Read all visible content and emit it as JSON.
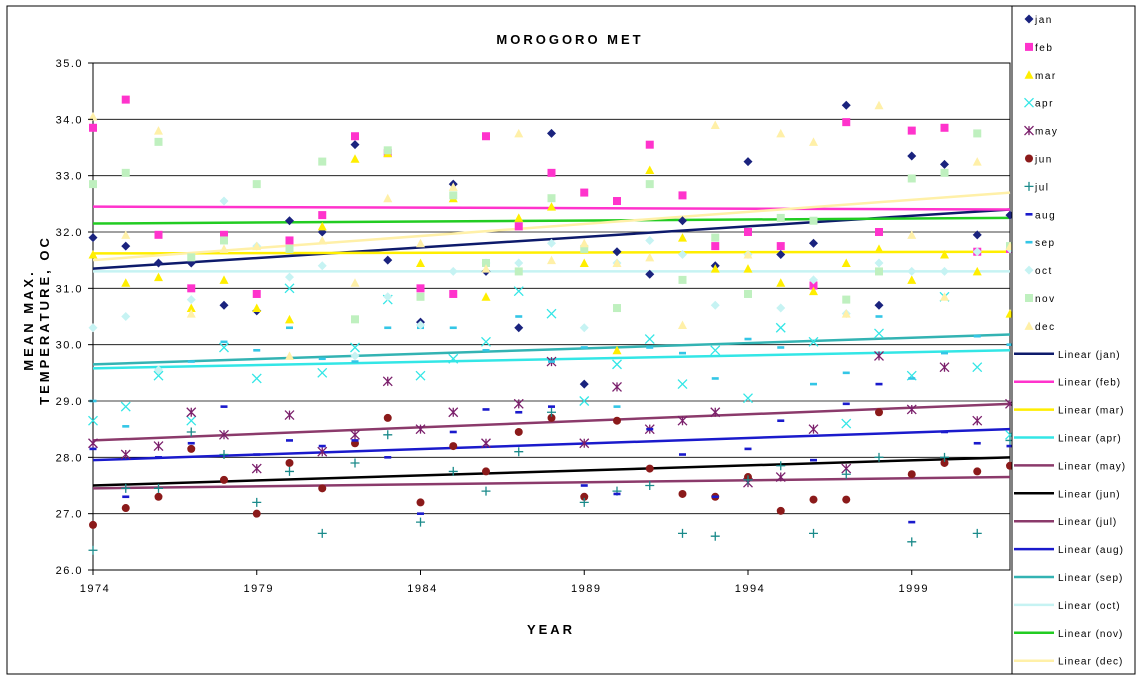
{
  "chart_data": {
    "type": "scatter",
    "title": "MOROGORO MET",
    "xlabel": "YEAR",
    "ylabel_line1": "MEAN MAX.",
    "ylabel_line2": "TEMPERATURE, OC",
    "xlim": [
      1974,
      2002
    ],
    "ylim": [
      26.0,
      35.0
    ],
    "x_ticks": [
      "1974",
      "1979",
      "1984",
      "1989",
      "1994",
      "1999"
    ],
    "y_ticks": [
      "26.0",
      "27.0",
      "28.0",
      "29.0",
      "30.0",
      "31.0",
      "32.0",
      "33.0",
      "34.0",
      "35.0"
    ],
    "grid": "horizontal",
    "legend_position": "right",
    "x": [
      1974,
      1975,
      1976,
      1977,
      1978,
      1979,
      1980,
      1981,
      1982,
      1983,
      1984,
      1985,
      1986,
      1987,
      1988,
      1989,
      1990,
      1991,
      1992,
      1993,
      1994,
      1995,
      1996,
      1997,
      1998,
      1999,
      2000,
      2001,
      2002
    ],
    "series": [
      {
        "name": "jan",
        "marker": "diamond",
        "color": "#1a237e",
        "values": [
          31.9,
          31.75,
          31.45,
          31.45,
          30.7,
          30.6,
          32.2,
          32.0,
          33.55,
          31.5,
          30.4,
          32.85,
          31.3,
          30.3,
          33.75,
          29.3,
          31.65,
          31.25,
          32.2,
          31.4,
          33.25,
          31.6,
          31.8,
          34.25,
          30.7,
          33.35,
          33.2,
          31.95,
          32.3
        ]
      },
      {
        "name": "feb",
        "marker": "square",
        "color": "#ff33cc",
        "values": [
          33.85,
          34.35,
          31.95,
          31.0,
          31.95,
          30.9,
          31.85,
          32.3,
          33.7,
          33.4,
          31.0,
          30.9,
          33.7,
          32.1,
          33.05,
          32.7,
          32.55,
          33.55,
          32.65,
          31.75,
          32.0,
          31.75,
          31.05,
          33.95,
          32.0,
          33.8,
          33.85,
          31.65,
          31.7
        ]
      },
      {
        "name": "mar",
        "marker": "triangle",
        "color": "#ffee00",
        "values": [
          31.6,
          31.1,
          31.2,
          30.65,
          31.15,
          30.65,
          30.45,
          32.1,
          33.3,
          33.4,
          31.45,
          32.6,
          30.85,
          32.25,
          32.45,
          31.45,
          29.9,
          33.1,
          31.9,
          31.35,
          31.35,
          31.1,
          30.95,
          31.45,
          31.7,
          31.15,
          31.6,
          31.3,
          30.55
        ]
      },
      {
        "name": "apr",
        "marker": "x",
        "color": "#33e6e6",
        "values": [
          28.65,
          28.9,
          29.45,
          28.65,
          29.95,
          29.4,
          31.0,
          29.5,
          29.95,
          30.8,
          29.45,
          29.75,
          30.05,
          30.95,
          30.55,
          29.0,
          29.65,
          30.1,
          29.3,
          29.9,
          29.05,
          30.3,
          30.05,
          28.6,
          30.2,
          29.45,
          30.85,
          29.6,
          28.4
        ]
      },
      {
        "name": "may",
        "marker": "star",
        "color": "#7b1f6b",
        "values": [
          28.25,
          28.05,
          28.2,
          28.8,
          28.4,
          27.8,
          28.75,
          28.1,
          28.4,
          29.35,
          28.5,
          28.8,
          28.25,
          28.95,
          29.7,
          28.25,
          29.25,
          28.5,
          28.65,
          28.8,
          27.55,
          27.65,
          28.5,
          27.8,
          29.8,
          28.85,
          29.6,
          28.65,
          28.95
        ]
      },
      {
        "name": "jun",
        "marker": "circle",
        "color": "#8b1a1a",
        "values": [
          26.8,
          27.1,
          27.3,
          28.15,
          27.6,
          27.0,
          27.9,
          27.45,
          28.25,
          28.7,
          27.2,
          28.2,
          27.75,
          28.45,
          28.7,
          27.3,
          28.65,
          27.8,
          27.35,
          27.3,
          27.65,
          27.05,
          27.25,
          27.25,
          28.8,
          27.7,
          27.9,
          27.75,
          27.85
        ]
      },
      {
        "name": "jul",
        "marker": "plus",
        "color": "#1a8a8a",
        "values": [
          26.35,
          27.45,
          27.45,
          28.45,
          28.05,
          27.2,
          27.75,
          26.65,
          27.9,
          28.4,
          26.85,
          27.75,
          27.4,
          28.1,
          28.8,
          27.2,
          27.4,
          27.5,
          26.65,
          26.6,
          27.6,
          27.85,
          26.65,
          27.7,
          28.0,
          26.5,
          28.0,
          26.65,
          28.3
        ]
      },
      {
        "name": "aug",
        "marker": "dash",
        "color": "#1a1acc",
        "values": [
          28.15,
          27.3,
          28.0,
          28.25,
          28.9,
          28.05,
          28.3,
          28.2,
          28.3,
          28.0,
          27.0,
          28.45,
          28.85,
          28.8,
          28.9,
          27.5,
          27.35,
          28.5,
          28.05,
          27.3,
          28.15,
          28.65,
          27.95,
          28.95,
          29.3,
          26.85,
          28.45,
          28.25,
          28.2
        ]
      },
      {
        "name": "sep",
        "marker": "dash",
        "color": "#33c6e6",
        "values": [
          29.0,
          28.55,
          29.55,
          29.7,
          30.05,
          29.9,
          30.3,
          29.75,
          29.7,
          30.3,
          30.3,
          30.3,
          29.9,
          30.5,
          29.7,
          29.95,
          28.9,
          29.95,
          29.85,
          29.4,
          30.1,
          29.95,
          29.3,
          29.5,
          30.5,
          29.4,
          29.85,
          30.15,
          30.0
        ]
      },
      {
        "name": "oct",
        "marker": "diamond",
        "color": "#c6f3f3",
        "values": [
          30.3,
          30.5,
          29.55,
          30.8,
          32.55,
          31.75,
          31.2,
          31.4,
          29.8,
          30.85,
          30.35,
          31.3,
          31.45,
          31.45,
          31.8,
          30.3,
          31.45,
          31.85,
          31.6,
          30.7,
          31.6,
          30.65,
          31.15,
          30.55,
          31.45,
          31.3,
          31.3,
          31.65,
          31.7
        ]
      },
      {
        "name": "nov",
        "marker": "square",
        "color": "#bff0bf",
        "values": [
          32.85,
          33.05,
          33.6,
          31.55,
          31.85,
          32.85,
          31.7,
          33.25,
          30.45,
          33.45,
          30.85,
          32.65,
          31.45,
          31.3,
          32.6,
          31.7,
          30.65,
          32.85,
          31.15,
          31.9,
          30.9,
          32.25,
          32.2,
          30.8,
          31.3,
          32.95,
          33.05,
          33.75,
          31.75
        ]
      },
      {
        "name": "dec",
        "marker": "triangle",
        "color": "#fff0a8",
        "values": [
          34.05,
          31.95,
          33.8,
          30.55,
          31.7,
          31.75,
          29.8,
          31.85,
          31.1,
          32.6,
          31.8,
          32.8,
          31.35,
          33.75,
          31.5,
          31.8,
          31.45,
          31.55,
          30.35,
          33.9,
          31.6,
          33.75,
          33.6,
          30.55,
          34.25,
          31.95,
          30.85,
          33.25,
          31.75
        ]
      }
    ],
    "trendlines": [
      {
        "name": "Linear (jan)",
        "color": "#0d1a6b",
        "start": 31.35,
        "end": 32.4
      },
      {
        "name": "Linear (feb)",
        "color": "#ff33cc",
        "start": 32.45,
        "end": 32.4
      },
      {
        "name": "Linear (mar)",
        "color": "#ffee00",
        "start": 31.62,
        "end": 31.65
      },
      {
        "name": "Linear (apr)",
        "color": "#33e6e6",
        "start": 29.58,
        "end": 29.9
      },
      {
        "name": "Linear (may)",
        "color": "#8b3a6b",
        "start": 28.3,
        "end": 28.95
      },
      {
        "name": "Linear (jun)",
        "color": "#000000",
        "start": 27.5,
        "end": 28.0
      },
      {
        "name": "Linear (jul)",
        "color": "#8b3a6b",
        "start": 27.45,
        "end": 27.65
      },
      {
        "name": "Linear (aug)",
        "color": "#1a1acc",
        "start": 27.95,
        "end": 28.5
      },
      {
        "name": "Linear (sep)",
        "color": "#33b3b3",
        "start": 29.65,
        "end": 30.18
      },
      {
        "name": "Linear (oct)",
        "color": "#c6f3f3",
        "start": 31.3,
        "end": 31.3
      },
      {
        "name": "Linear (nov)",
        "color": "#22cc22",
        "start": 32.15,
        "end": 32.25
      },
      {
        "name": "Linear (dec)",
        "color": "#fff0a8",
        "start": 31.5,
        "end": 32.7
      }
    ]
  }
}
